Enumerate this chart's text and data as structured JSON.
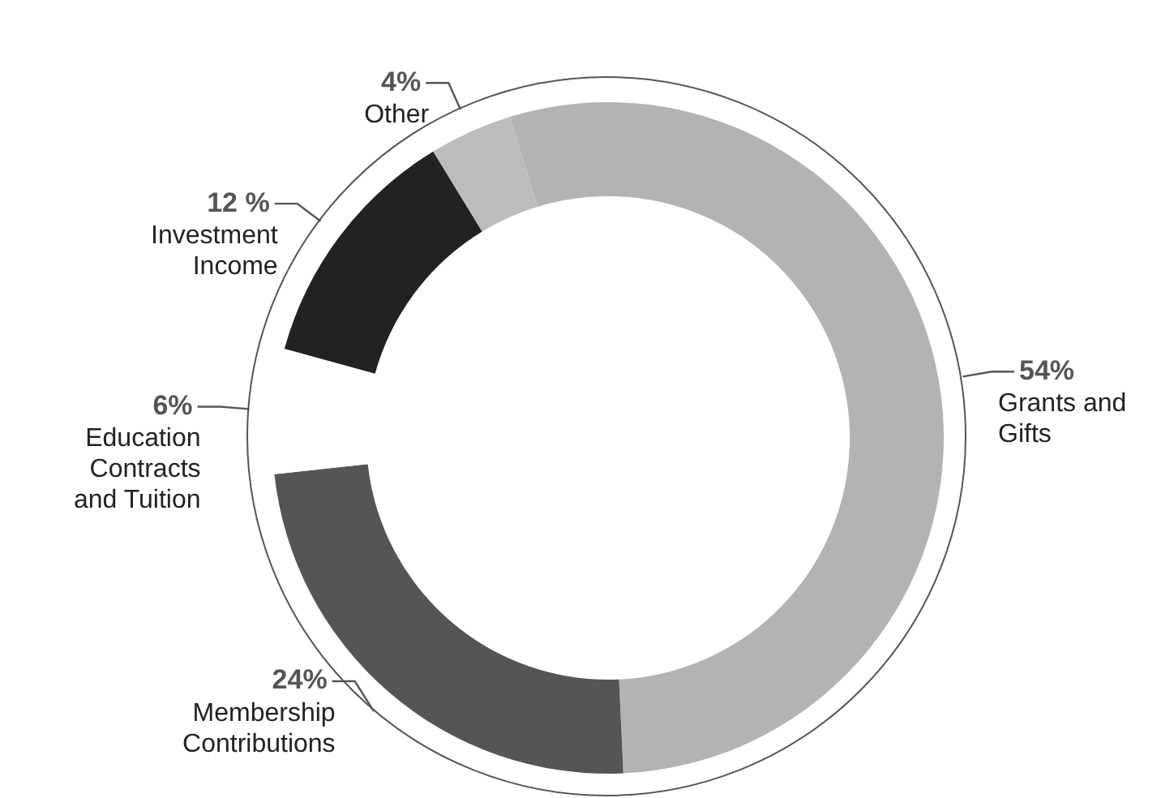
{
  "chart_data": {
    "type": "donut",
    "categories": [
      "Grants and Gifts",
      "Membership Contributions",
      "Education Contracts and Tuition",
      "Investment Income",
      "Other"
    ],
    "values": [
      54,
      24,
      6,
      12,
      4
    ],
    "value_labels": [
      "54%",
      "24%",
      "6%",
      "12 %",
      "4%"
    ],
    "colors": [
      "#b3b3b3",
      "#555555",
      "#ffffff",
      "#222222",
      "#bcbcbc"
    ],
    "legend": false
  }
}
